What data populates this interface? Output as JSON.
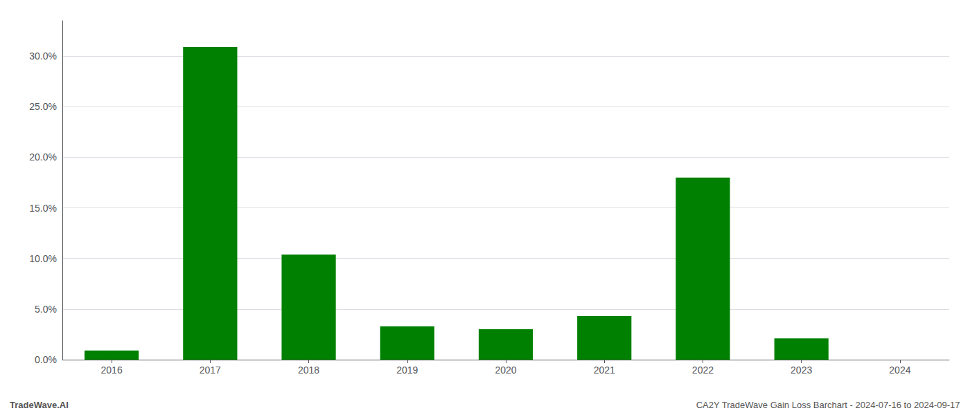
{
  "chart_data": {
    "type": "bar",
    "categories": [
      "2016",
      "2017",
      "2018",
      "2019",
      "2020",
      "2021",
      "2022",
      "2023",
      "2024"
    ],
    "values": [
      0.009,
      0.309,
      0.104,
      0.033,
      0.03,
      0.043,
      0.18,
      0.021,
      0.0
    ],
    "color": "#008000",
    "ylim": [
      0,
      0.335
    ],
    "yticks": [
      {
        "value": 0.0,
        "label": "0.0%"
      },
      {
        "value": 0.05,
        "label": "5.0%"
      },
      {
        "value": 0.1,
        "label": "10.0%"
      },
      {
        "value": 0.15,
        "label": "15.0%"
      },
      {
        "value": 0.2,
        "label": "20.0%"
      },
      {
        "value": 0.25,
        "label": "25.0%"
      },
      {
        "value": 0.3,
        "label": "30.0%"
      }
    ],
    "grid": true,
    "annotations": [
      "TradeWave.AI",
      "CA2Y TradeWave Gain Loss Barchart - 2024-07-16 to 2024-09-17"
    ]
  }
}
